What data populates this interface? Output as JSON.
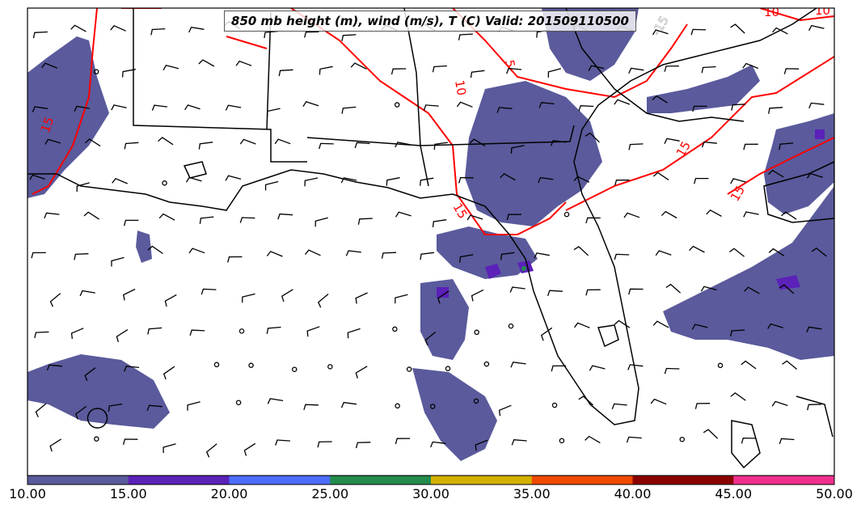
{
  "title": "850 mb height (m), wind (m/s), T (C) Valid: 201509110500",
  "colorbar": {
    "ticks": [
      "10.00",
      "15.00",
      "20.00",
      "25.00",
      "30.00",
      "35.00",
      "40.00",
      "45.00",
      "50.00"
    ],
    "colors": [
      "#5a5a9c",
      "#5b21b8",
      "#4d6dff",
      "#238b4c",
      "#d4b000",
      "#f04a00",
      "#8b0000",
      "#f0308e"
    ]
  },
  "contours": {
    "color": "#ff0000",
    "labels": [
      "15",
      "15",
      "10",
      "5",
      "15",
      "15",
      "10",
      "10",
      "-15"
    ]
  },
  "colors": {
    "shade": "#5a5a9c",
    "coast": "#000000",
    "contour": "#ff0000"
  }
}
